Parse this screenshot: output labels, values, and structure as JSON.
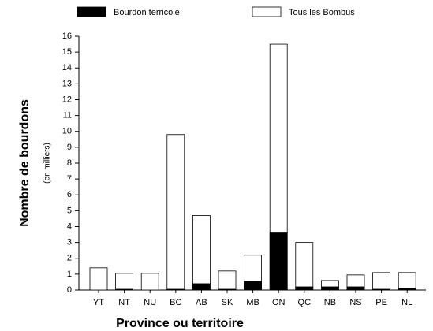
{
  "chart_data": {
    "type": "bar",
    "ylabel": "Nombre de bourdons",
    "ylabel_sub": "(en milliers)",
    "xlabel": "Province ou territoire",
    "categories": [
      "YT",
      "NT",
      "NU",
      "BC",
      "AB",
      "SK",
      "MB",
      "ON",
      "QC",
      "NB",
      "NS",
      "PE",
      "NL"
    ],
    "series": [
      {
        "name": "Bourdon terricole",
        "color": "#000000",
        "values": [
          0,
          0.05,
          0,
          0.05,
          0.4,
          0.05,
          0.55,
          3.6,
          0.2,
          0.2,
          0.2,
          0.05,
          0.1
        ]
      },
      {
        "name": "Tous les Bombus",
        "color": "#ffffff",
        "values": [
          1.4,
          1.05,
          1.05,
          9.8,
          4.7,
          1.2,
          2.2,
          15.5,
          3.0,
          0.6,
          0.95,
          1.1,
          1.1
        ]
      }
    ],
    "ylim": [
      0,
      16
    ],
    "yticks": [
      0,
      1,
      2,
      3,
      4,
      5,
      6,
      7,
      8,
      9,
      10,
      11,
      12,
      13,
      14,
      15,
      16
    ],
    "overlap": true
  }
}
